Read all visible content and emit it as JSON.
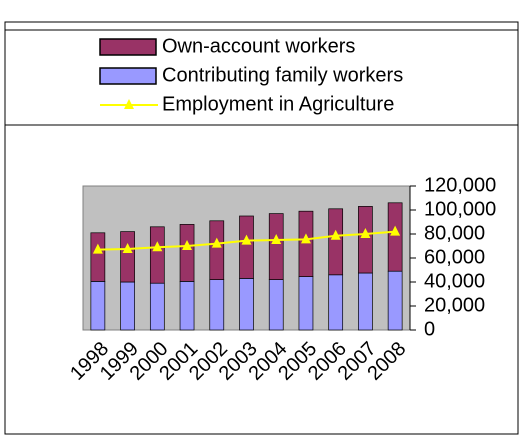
{
  "chart_data": {
    "type": "bar",
    "stacked": true,
    "categories": [
      "1998",
      "1999",
      "2000",
      "2001",
      "2002",
      "2003",
      "2004",
      "2005",
      "2006",
      "2007",
      "2008"
    ],
    "series": [
      {
        "name": "Contributing family workers",
        "color": "#9999ff",
        "kind": "bar",
        "values": [
          40500,
          40000,
          39000,
          40500,
          42000,
          43000,
          42000,
          44500,
          46000,
          47500,
          49000
        ]
      },
      {
        "name": "Own-account workers",
        "color": "#993366",
        "kind": "bar",
        "values": [
          40500,
          42000,
          47000,
          47500,
          49000,
          52000,
          55000,
          54500,
          55000,
          55500,
          57000
        ]
      },
      {
        "name": "Employment in Agriculture",
        "color": "#ffff00",
        "kind": "line",
        "values": [
          67000,
          67500,
          69000,
          70000,
          72000,
          74500,
          75000,
          75500,
          78500,
          80000,
          82000
        ]
      }
    ],
    "legend_order": [
      1,
      0,
      2
    ],
    "ylim": [
      0,
      120000
    ],
    "yticks": [
      0,
      {
        "value": 20000,
        "label": "20,000"
      },
      {
        "value": 40000,
        "label": "40,000"
      },
      {
        "value": 60000,
        "label": "60,000"
      },
      {
        "value": 80000,
        "label": "80,000"
      },
      {
        "value": 100000,
        "label": "100,000"
      },
      {
        "value": 120000,
        "label": "120,000"
      }
    ],
    "y_axis_side": "right",
    "plot_background": "#c0c0c0"
  }
}
